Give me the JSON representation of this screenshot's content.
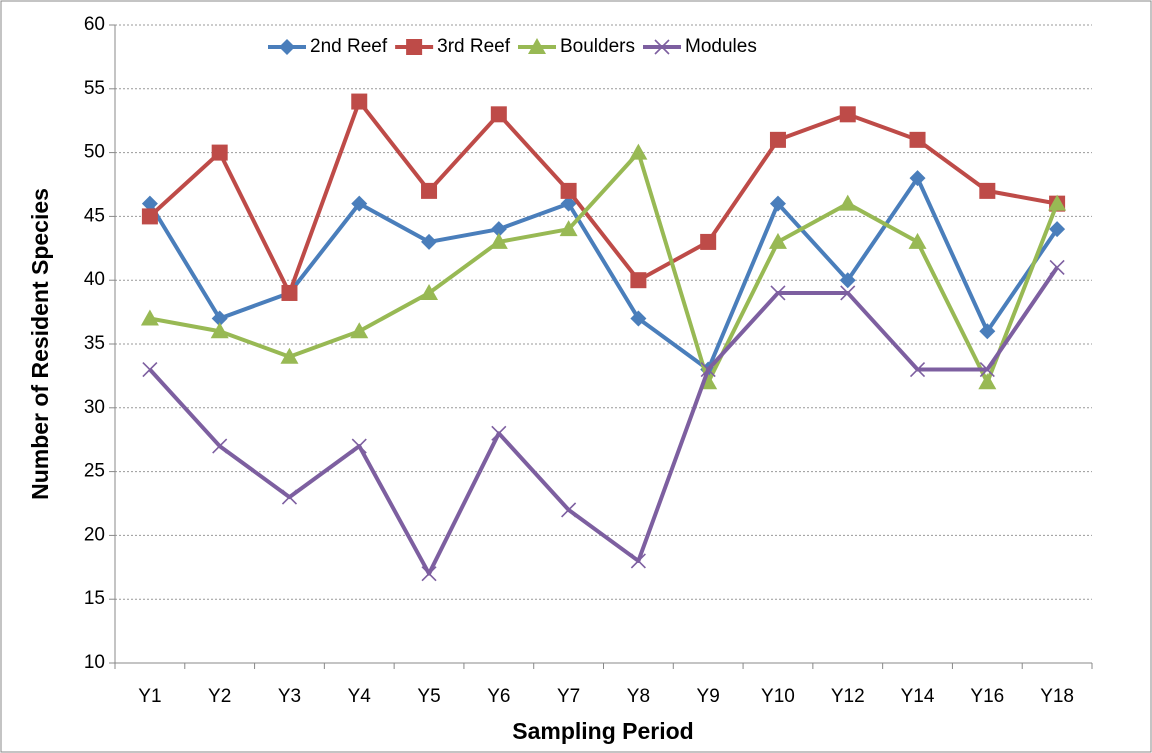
{
  "chart_data": {
    "type": "line",
    "x_label": "Sampling Period",
    "y_label": "Number of Resident Species",
    "categories": [
      "Y1",
      "Y2",
      "Y3",
      "Y4",
      "Y5",
      "Y6",
      "Y7",
      "Y8",
      "Y9",
      "Y10",
      "Y12",
      "Y14",
      "Y16",
      "Y18"
    ],
    "series": [
      {
        "name": "2nd Reef",
        "color": "#4a7ebb",
        "marker": "diamond",
        "values": [
          46,
          37,
          39,
          46,
          43,
          44,
          46,
          37,
          33,
          46,
          40,
          48,
          36,
          44
        ]
      },
      {
        "name": "3rd Reef",
        "color": "#be4b48",
        "marker": "square",
        "values": [
          45,
          50,
          39,
          54,
          47,
          53,
          47,
          40,
          43,
          51,
          53,
          51,
          47,
          46
        ]
      },
      {
        "name": "Boulders",
        "color": "#98b954",
        "marker": "triangle",
        "values": [
          37,
          36,
          34,
          36,
          39,
          43,
          44,
          50,
          32,
          43,
          46,
          43,
          32,
          46
        ]
      },
      {
        "name": "Modules",
        "color": "#7d5fa0",
        "marker": "x",
        "values": [
          33,
          27,
          23,
          27,
          17,
          28,
          22,
          18,
          33,
          39,
          39,
          33,
          33,
          41
        ]
      }
    ],
    "ylim": [
      10,
      60
    ],
    "yticks": [
      10,
      15,
      20,
      25,
      30,
      35,
      40,
      45,
      50,
      55,
      60
    ],
    "grid": true,
    "legend": "top"
  }
}
